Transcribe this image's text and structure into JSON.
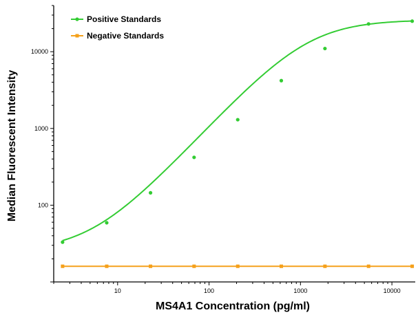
{
  "chart_data": {
    "type": "scatter",
    "xlabel": "MS4A1 Concentration (pg/ml)",
    "ylabel": "Median Fluorescent Intensity",
    "x_scale": "log",
    "y_scale": "log",
    "xlim": [
      2,
      18000
    ],
    "ylim": [
      10,
      40000
    ],
    "x_ticks": [
      10,
      100,
      1000,
      10000
    ],
    "x_tick_labels": [
      "10",
      "100",
      "1000",
      "10000"
    ],
    "y_ticks": [
      100,
      1000,
      10000
    ],
    "y_tick_labels": [
      "100",
      "1000",
      "10000"
    ],
    "grid": false,
    "legend_position": "top-left",
    "series": [
      {
        "name": "Positive Standards",
        "color": "#33cc33",
        "marker": "circle",
        "x": [
          2.5,
          7.6,
          22.9,
          68.6,
          206,
          617,
          1852,
          5556,
          16667
        ],
        "y": [
          33,
          59,
          145,
          420,
          1300,
          4200,
          11000,
          23000,
          25000
        ],
        "fit": "4PL",
        "fit_params": {
          "A": 25,
          "B": 1.28,
          "C": 1200,
          "D": 26000
        }
      },
      {
        "name": "Negative Standards",
        "color": "#f5a01a",
        "marker": "square",
        "x": [
          2.5,
          7.6,
          22.9,
          68.6,
          206,
          617,
          1852,
          5556,
          16667
        ],
        "y": [
          16,
          16,
          16,
          16,
          16,
          16,
          16,
          16,
          16
        ]
      }
    ]
  }
}
